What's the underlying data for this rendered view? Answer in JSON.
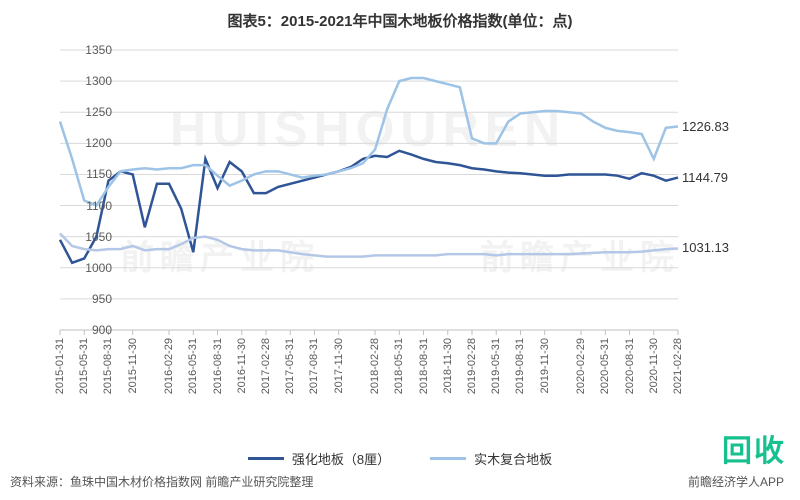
{
  "title": "图表5：2015-2021年中国木地板价格指数(单位：点)",
  "title_fontsize": 15,
  "watermark_main": "HUISHOUREN",
  "watermark_logo": "前瞻产业院",
  "corner_stamp": "回收",
  "source": "资料来源：鱼珠中国木材价格指数网 前瞻产业研究院整理",
  "footer_right": "前瞻经济学人APP",
  "chart": {
    "type": "line",
    "background_color": "#ffffff",
    "grid_color": "#d9d9d9",
    "axis_color": "#bfbfbf",
    "ylim": [
      900,
      1350
    ],
    "ytick_step": 50,
    "yticks": [
      900,
      950,
      1000,
      1050,
      1100,
      1150,
      1200,
      1250,
      1300,
      1350
    ],
    "x_labels": [
      "2015-01-31",
      "2015-05-31",
      "2015-08-31",
      "2015-11-30",
      "2016-02-29",
      "2016-05-31",
      "2016-08-31",
      "2016-11-30",
      "2017-02-28",
      "2017-05-31",
      "2017-08-31",
      "2017-11-30",
      "2018-02-28",
      "2018-05-31",
      "2018-08-31",
      "2018-11-30",
      "2019-02-28",
      "2019-05-31",
      "2019-08-31",
      "2019-11-30",
      "2020-02-29",
      "2020-05-31",
      "2020-08-31",
      "2020-11-30",
      "2021-02-28"
    ],
    "label_fontsize": 11,
    "line_width": 2.5,
    "series": [
      {
        "name": "强化地板（8厘）",
        "color": "#2f5597",
        "end_label": "1144.79",
        "values": [
          1045,
          1008,
          1015,
          1050,
          1140,
          1155,
          1150,
          1065,
          1135,
          1135,
          1095,
          1025,
          1175,
          1128,
          1170,
          1155,
          1120,
          1120,
          1130,
          1135,
          1140,
          1145,
          1150,
          1155,
          1162,
          1175,
          1180,
          1178,
          1188,
          1182,
          1175,
          1170,
          1168,
          1165,
          1160,
          1158,
          1155,
          1153,
          1152,
          1150,
          1148,
          1148,
          1150,
          1150,
          1150,
          1150,
          1148,
          1143,
          1152,
          1148,
          1140,
          1145
        ]
      },
      {
        "name": "实木复合地板",
        "color": "#9dc3e6",
        "end_label": "1226.83",
        "values": [
          1235,
          1175,
          1108,
          1100,
          1130,
          1155,
          1158,
          1160,
          1158,
          1160,
          1160,
          1165,
          1165,
          1148,
          1132,
          1140,
          1150,
          1155,
          1155,
          1150,
          1145,
          1148,
          1150,
          1155,
          1160,
          1168,
          1190,
          1255,
          1300,
          1305,
          1305,
          1300,
          1295,
          1290,
          1208,
          1200,
          1200,
          1235,
          1248,
          1250,
          1252,
          1252,
          1250,
          1248,
          1235,
          1225,
          1220,
          1218,
          1215,
          1175,
          1225,
          1227
        ]
      },
      {
        "name": "series3",
        "hidden_in_legend": true,
        "color": "#b4c7e7",
        "end_label": "1031.13",
        "values": [
          1055,
          1035,
          1030,
          1028,
          1030,
          1030,
          1035,
          1028,
          1030,
          1030,
          1038,
          1048,
          1050,
          1045,
          1035,
          1030,
          1028,
          1028,
          1028,
          1025,
          1022,
          1020,
          1018,
          1018,
          1018,
          1018,
          1020,
          1020,
          1020,
          1020,
          1020,
          1020,
          1022,
          1022,
          1022,
          1022,
          1020,
          1022,
          1022,
          1022,
          1022,
          1022,
          1022,
          1023,
          1024,
          1025,
          1025,
          1025,
          1026,
          1028,
          1030,
          1031
        ]
      }
    ]
  }
}
